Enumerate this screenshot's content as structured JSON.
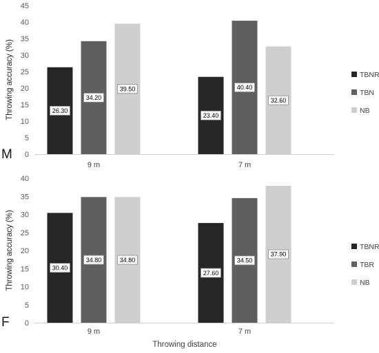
{
  "chart_data": [
    {
      "type": "bar",
      "panel_label": "M",
      "ylabel": "Throwing accuracy (%)",
      "xlabel": "",
      "ylim": [
        0,
        45
      ],
      "yticks": [
        "0",
        "5",
        "10",
        "15",
        "20",
        "25",
        "30",
        "35",
        "40",
        "45"
      ],
      "categories": [
        "9 m",
        "7 m"
      ],
      "series": [
        {
          "name": "TBNR",
          "color": "#262626",
          "values": [
            26.3,
            23.4
          ],
          "labels": [
            "26.30",
            "23.40"
          ]
        },
        {
          "name": "TBN",
          "color": "#5f5f5f",
          "values": [
            34.2,
            40.4
          ],
          "labels": [
            "34.20",
            "40.40"
          ]
        },
        {
          "name": "NB",
          "color": "#cfcfcf",
          "values": [
            39.5,
            32.6
          ],
          "labels": [
            "39.50",
            "32.60"
          ]
        }
      ],
      "legend": "right",
      "grid": false
    },
    {
      "type": "bar",
      "panel_label": "F",
      "ylabel": "Throwing accuracy (%)",
      "xlabel": "Throwing distance",
      "ylim": [
        0,
        40
      ],
      "yticks": [
        "0",
        "5",
        "10",
        "15",
        "20",
        "25",
        "30",
        "35",
        "40"
      ],
      "categories": [
        "9 m",
        "7 m"
      ],
      "series": [
        {
          "name": "TBNR",
          "color": "#262626",
          "values": [
            30.4,
            27.6
          ],
          "labels": [
            "30.40",
            "27.60"
          ]
        },
        {
          "name": "TBR",
          "color": "#5f5f5f",
          "values": [
            34.8,
            34.5
          ],
          "labels": [
            "34.80",
            "34.50"
          ]
        },
        {
          "name": "NB",
          "color": "#cfcfcf",
          "values": [
            34.8,
            37.9
          ],
          "labels": [
            "34.80",
            "37.90"
          ]
        }
      ],
      "legend": "right",
      "grid": false
    }
  ]
}
